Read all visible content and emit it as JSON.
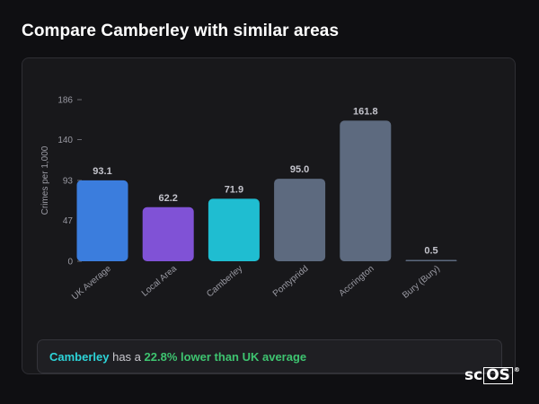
{
  "page": {
    "title": "Compare Camberley with similar areas"
  },
  "chart_data": {
    "type": "bar",
    "ylabel": "Crimes per 1,000",
    "xlabel": "",
    "ylim": [
      0,
      186
    ],
    "yticks": [
      0,
      47,
      93,
      140,
      186
    ],
    "categories": [
      "UK Average",
      "Local Area",
      "Camberley",
      "Pontypridd",
      "Accrington",
      "Bury (Bury)"
    ],
    "values": [
      93.1,
      62.2,
      71.9,
      95.0,
      161.8,
      0.5
    ],
    "value_labels": [
      "93.1",
      "62.2",
      "71.9",
      "95.0",
      "161.8",
      "0.5"
    ],
    "colors": [
      "#3b7ddd",
      "#8052d6",
      "#1fbdd1",
      "#5d6a7f",
      "#5d6a7f",
      "#5d6a7f"
    ],
    "grid": false
  },
  "summary": {
    "area": "Camberley",
    "middle": " has a ",
    "difference": "22.8% lower than UK average"
  },
  "logo": {
    "text_a": "sc",
    "text_b": "OS",
    "mark": "®"
  }
}
